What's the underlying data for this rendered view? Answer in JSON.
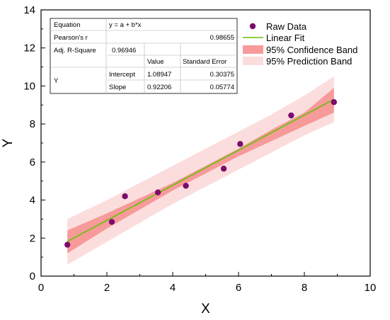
{
  "chart_data": {
    "type": "scatter",
    "xlabel": "X",
    "ylabel": "Y",
    "xlim": [
      0,
      10
    ],
    "ylim": [
      0,
      14
    ],
    "xticks": [
      0,
      2,
      4,
      6,
      8,
      10
    ],
    "yticks": [
      0,
      2,
      4,
      6,
      8,
      10,
      12,
      14
    ],
    "grid": false,
    "legend_position": "top-right",
    "series": [
      {
        "name": "Raw Data",
        "kind": "points",
        "color": "#7B0C6E",
        "x": [
          0.8,
          2.15,
          2.55,
          3.55,
          4.4,
          5.55,
          6.05,
          7.6,
          8.9
        ],
        "y": [
          1.65,
          2.85,
          4.2,
          4.4,
          4.75,
          5.65,
          6.95,
          8.45,
          9.15
        ]
      },
      {
        "name": "Linear Fit",
        "kind": "line",
        "color": "#66C200",
        "x": [
          0.8,
          8.9
        ],
        "y": [
          1.826,
          9.297
        ]
      },
      {
        "name": "95% Confidence Band",
        "kind": "band",
        "color": "#F79A9A",
        "x": [
          0.8,
          2.0,
          3.0,
          4.0,
          5.0,
          6.0,
          7.0,
          8.0,
          8.9
        ],
        "lower": [
          1.2,
          2.5,
          3.5,
          4.5,
          5.4,
          6.3,
          7.1,
          7.9,
          8.6
        ],
        "upper": [
          2.4,
          3.3,
          4.1,
          4.9,
          5.8,
          6.7,
          7.7,
          8.6,
          9.9
        ]
      },
      {
        "name": "95% Prediction Band",
        "kind": "band",
        "color": "#FCDDDD",
        "x": [
          0.8,
          2.0,
          3.0,
          4.0,
          5.0,
          6.0,
          7.0,
          8.0,
          8.9
        ],
        "lower": [
          0.6,
          1.8,
          2.8,
          3.8,
          4.7,
          5.6,
          6.5,
          7.4,
          8.1
        ],
        "upper": [
          3.0,
          4.0,
          4.9,
          5.8,
          6.7,
          7.6,
          8.5,
          9.5,
          10.5
        ]
      }
    ],
    "stats_table": {
      "equation_label": "Equation",
      "equation_value": "y = a + b*x",
      "pearson_label": "Pearson's r",
      "pearson_value": "0.98655",
      "adjr2_label": "Adj. R-Square",
      "adjr2_value": "0.96946",
      "value_header": "Value",
      "stderr_header": "Standard Error",
      "row_label": "Y",
      "intercept_label": "Intercept",
      "intercept_value": "1.08947",
      "intercept_err": "0.30375",
      "slope_label": "Slope",
      "slope_value": "0.92206",
      "slope_err": "0.05774"
    }
  }
}
